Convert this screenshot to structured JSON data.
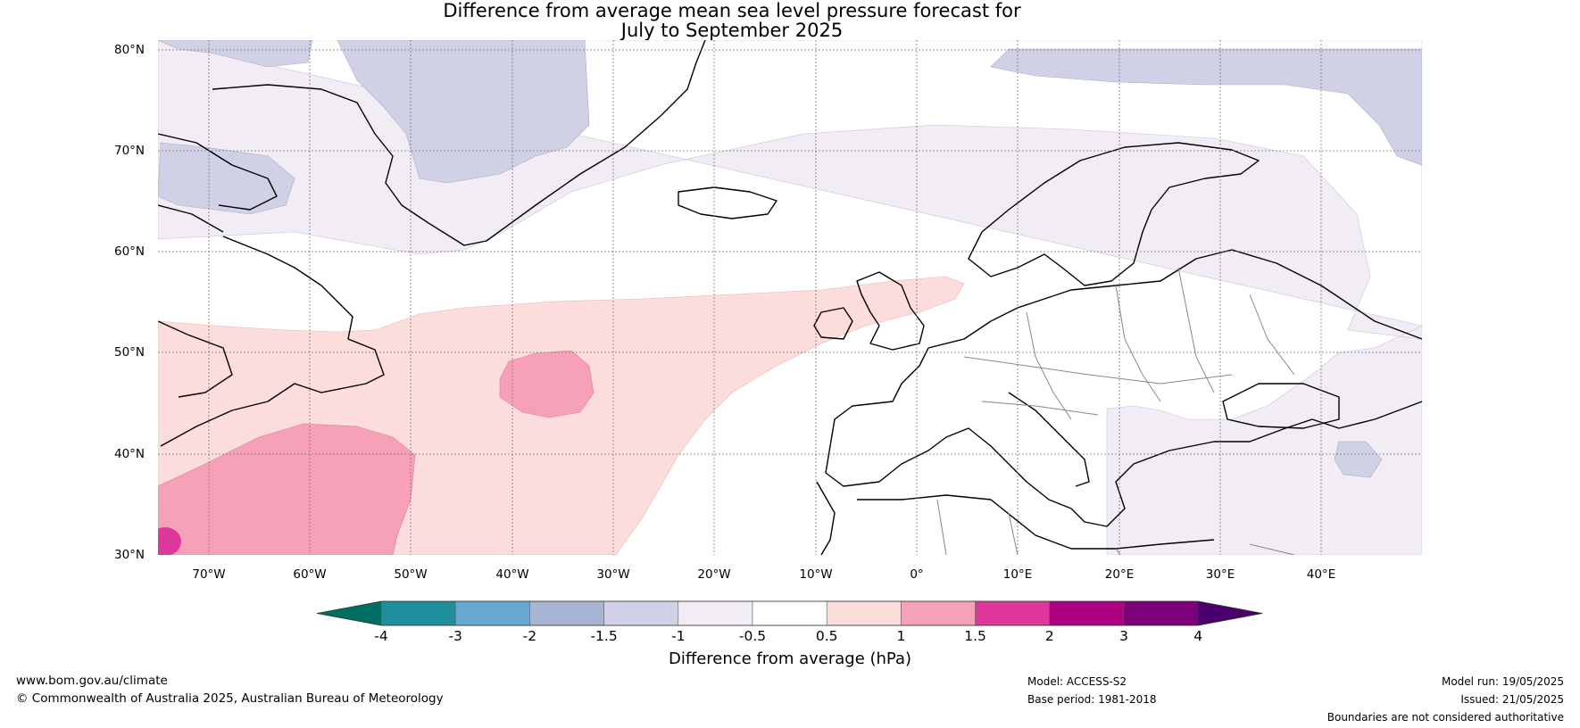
{
  "title": {
    "line1": "Difference from average mean sea level pressure forecast for",
    "line2": "July to September 2025"
  },
  "map": {
    "lat_labels": [
      "80°N",
      "70°N",
      "60°N",
      "50°N",
      "40°N",
      "30°N"
    ],
    "lon_labels": [
      "70°W",
      "60°W",
      "50°W",
      "40°W",
      "30°W",
      "20°W",
      "10°W",
      "0°",
      "10°E",
      "20°E",
      "30°E",
      "40°E"
    ],
    "extent": {
      "lon_min": -75,
      "lon_max": 50,
      "lat_min": 30,
      "lat_max": 81
    }
  },
  "colorbar": {
    "label": "Difference from average (hPa)",
    "ticks": [
      "-4",
      "-3",
      "-2",
      "-1.5",
      "-1",
      "-0.5",
      "0.5",
      "1",
      "1.5",
      "2",
      "3",
      "4"
    ],
    "colors": [
      "#006e60",
      "#1e8f9c",
      "#68a7d0",
      "#a7b5d3",
      "#d0d1e6",
      "#f2ecf5",
      "#ffffff",
      "#fddcdc",
      "#f7a1b8",
      "#de379c",
      "#ac0180",
      "#7b017a",
      "#49006a"
    ]
  },
  "footer": {
    "website": "www.bom.gov.au/climate",
    "copyright": "© Commonwealth of Australia 2025, Australian Bureau of Meteorology",
    "model": "Model: ACCESS-S2",
    "base_period": "Base period: 1981-2018",
    "model_run": "Model run: 19/05/2025",
    "issued": "Issued: 21/05/2025",
    "disclaimer": "Boundaries are not considered authoritative"
  }
}
